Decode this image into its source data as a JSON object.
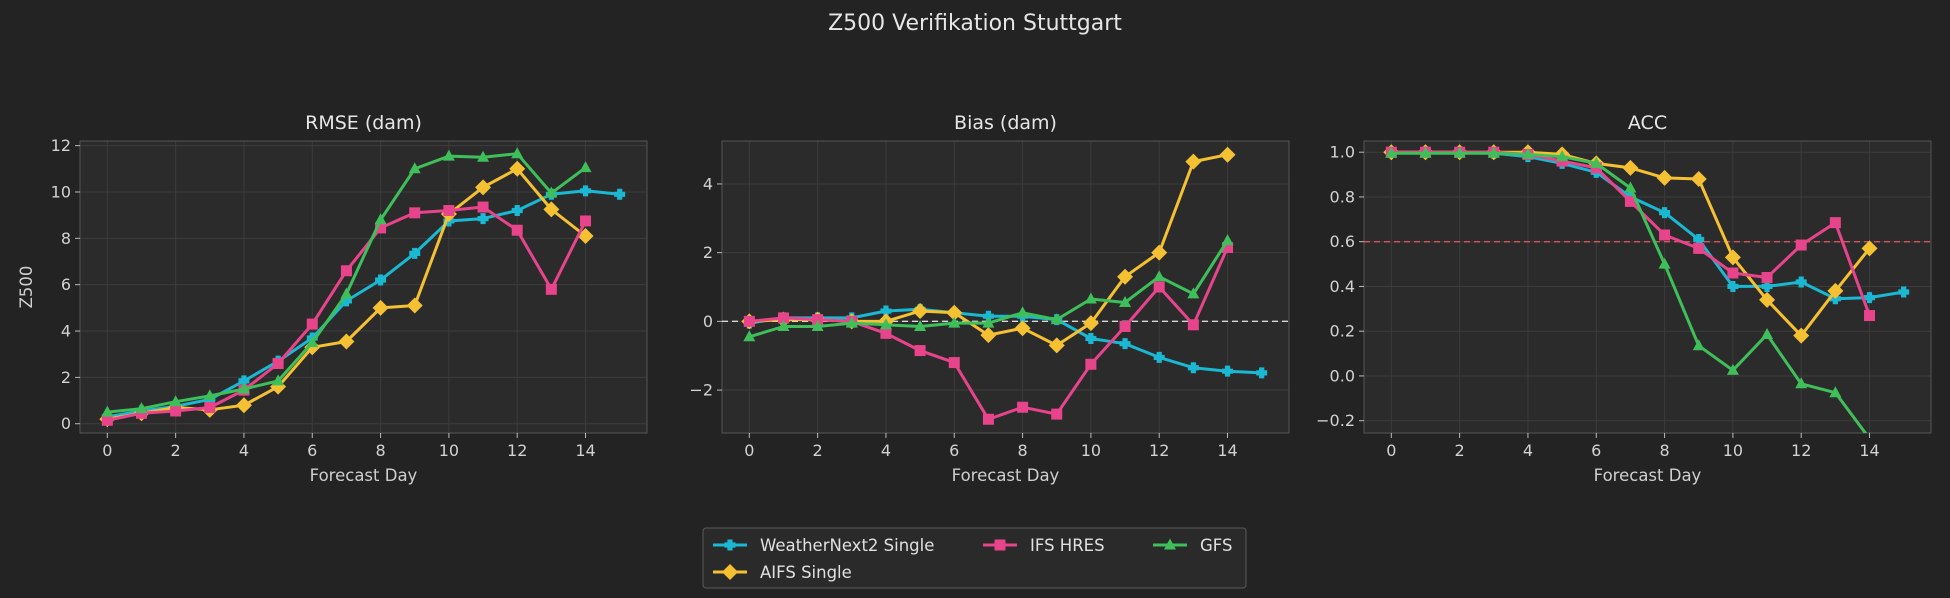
{
  "chart_data": {
    "type": "line",
    "suptitle": "Z500 Verifikation Stuttgart",
    "series_styles": [
      {
        "name": "WeatherNext2 Single",
        "color": "#1ab8d2",
        "marker": "plus-filled"
      },
      {
        "name": "AIFS Single",
        "color": "#f5c132",
        "marker": "diamond"
      },
      {
        "name": "IFS HRES",
        "color": "#e8448c",
        "marker": "square"
      },
      {
        "name": "GFS",
        "color": "#3fbf5a",
        "marker": "triangle"
      }
    ],
    "legend": {
      "placement": "bottom-center",
      "columns": 3,
      "order": [
        "WeatherNext2 Single",
        "IFS HRES",
        "GFS",
        "AIFS Single"
      ]
    },
    "panels": [
      {
        "title": "RMSE (dam)",
        "xlabel": "Forecast Day",
        "ylabel": "Z500",
        "xlim": [
          -0.8,
          15.8
        ],
        "ylim": [
          -0.4,
          12.2
        ],
        "xticks": [
          0,
          2,
          4,
          6,
          8,
          10,
          12,
          14
        ],
        "yticks": [
          0,
          2,
          4,
          6,
          8,
          10,
          12
        ],
        "tick_format": "int",
        "grid": true,
        "series": [
          {
            "name": "WeatherNext2 Single",
            "x": [
              0,
              1,
              2,
              3,
              4,
              5,
              6,
              7,
              8,
              9,
              10,
              11,
              12,
              13,
              14,
              15
            ],
            "values": [
              0.3,
              0.55,
              0.75,
              1.05,
              1.85,
              2.7,
              3.7,
              5.3,
              6.2,
              7.35,
              8.75,
              8.85,
              9.2,
              9.9,
              10.05,
              9.9
            ]
          },
          {
            "name": "AIFS Single",
            "x": [
              0,
              1,
              2,
              3,
              4,
              5,
              6,
              7,
              8,
              9,
              10,
              11,
              12,
              13,
              14
            ],
            "values": [
              0.2,
              0.45,
              0.7,
              0.6,
              0.8,
              1.6,
              3.3,
              3.55,
              5.0,
              5.1,
              9.05,
              10.2,
              11.0,
              9.25,
              8.1
            ]
          },
          {
            "name": "IFS HRES",
            "x": [
              0,
              1,
              2,
              3,
              4,
              5,
              6,
              7,
              8,
              9,
              10,
              11,
              12,
              13,
              14
            ],
            "values": [
              0.15,
              0.45,
              0.55,
              0.7,
              1.45,
              2.6,
              4.3,
              6.6,
              8.45,
              9.1,
              9.2,
              9.35,
              8.35,
              5.8,
              8.75
            ]
          },
          {
            "name": "GFS",
            "x": [
              0,
              1,
              2,
              3,
              4,
              5,
              6,
              7,
              8,
              9,
              10,
              11,
              12,
              13,
              14
            ],
            "values": [
              0.5,
              0.65,
              0.95,
              1.2,
              1.5,
              1.85,
              3.5,
              5.6,
              8.8,
              11.0,
              11.55,
              11.5,
              11.65,
              9.95,
              11.05
            ]
          }
        ]
      },
      {
        "title": "Bias (dam)",
        "xlabel": "Forecast Day",
        "ylabel": "",
        "xlim": [
          -0.8,
          15.8
        ],
        "ylim": [
          -3.25,
          5.25
        ],
        "xticks": [
          0,
          2,
          4,
          6,
          8,
          10,
          12,
          14
        ],
        "yticks": [
          -2,
          0,
          2,
          4
        ],
        "tick_format": "int_minus",
        "grid": true,
        "ref_line": {
          "y": 0,
          "color": "#d8d8d8"
        },
        "series": [
          {
            "name": "WeatherNext2 Single",
            "x": [
              0,
              1,
              2,
              3,
              4,
              5,
              6,
              7,
              8,
              9,
              10,
              11,
              12,
              13,
              14,
              15
            ],
            "values": [
              -0.05,
              0.1,
              0.1,
              0.1,
              0.3,
              0.35,
              0.25,
              0.15,
              0.15,
              0.05,
              -0.5,
              -0.65,
              -1.05,
              -1.35,
              -1.45,
              -1.5
            ]
          },
          {
            "name": "AIFS Single",
            "x": [
              0,
              1,
              2,
              3,
              4,
              5,
              6,
              7,
              8,
              9,
              10,
              11,
              12,
              13,
              14
            ],
            "values": [
              0.0,
              0.05,
              0.05,
              0.0,
              0.0,
              0.3,
              0.25,
              -0.4,
              -0.2,
              -0.7,
              -0.05,
              1.3,
              2.0,
              4.65,
              4.85
            ]
          },
          {
            "name": "IFS HRES",
            "x": [
              0,
              1,
              2,
              3,
              4,
              5,
              6,
              7,
              8,
              9,
              10,
              11,
              12,
              13,
              14
            ],
            "values": [
              0.0,
              0.1,
              0.05,
              0.0,
              -0.35,
              -0.85,
              -1.2,
              -2.85,
              -2.5,
              -2.7,
              -1.25,
              -0.15,
              1.0,
              -0.1,
              2.15
            ]
          },
          {
            "name": "GFS",
            "x": [
              0,
              1,
              2,
              3,
              4,
              5,
              6,
              7,
              8,
              9,
              10,
              11,
              12,
              13,
              14
            ],
            "values": [
              -0.45,
              -0.15,
              -0.15,
              -0.05,
              -0.1,
              -0.15,
              -0.05,
              -0.05,
              0.25,
              0.05,
              0.65,
              0.55,
              1.3,
              0.8,
              2.35
            ]
          }
        ]
      },
      {
        "title": "ACC",
        "xlabel": "Forecast Day",
        "ylabel": "",
        "xlim": [
          -0.8,
          15.8
        ],
        "ylim": [
          -0.255,
          1.05
        ],
        "xticks": [
          0,
          2,
          4,
          6,
          8,
          10,
          12,
          14
        ],
        "yticks": [
          -0.2,
          0.0,
          0.2,
          0.4,
          0.6,
          0.8,
          1.0
        ],
        "tick_format": "one_decimal_minus",
        "grid": true,
        "ref_line": {
          "y": 0.6,
          "color": "#d9545e"
        },
        "series": [
          {
            "name": "WeatherNext2 Single",
            "x": [
              0,
              1,
              2,
              3,
              4,
              5,
              6,
              7,
              8,
              9,
              10,
              11,
              12,
              13,
              14,
              15
            ],
            "values": [
              1.0,
              1.0,
              1.0,
              0.995,
              0.98,
              0.95,
              0.91,
              0.8,
              0.73,
              0.61,
              0.4,
              0.4,
              0.42,
              0.345,
              0.35,
              0.375
            ]
          },
          {
            "name": "AIFS Single",
            "x": [
              0,
              1,
              2,
              3,
              4,
              5,
              6,
              7,
              8,
              9,
              10,
              11,
              12,
              13,
              14
            ],
            "values": [
              1.0,
              1.0,
              1.0,
              1.0,
              1.0,
              0.99,
              0.95,
              0.93,
              0.885,
              0.88,
              0.53,
              0.34,
              0.18,
              0.38,
              0.57
            ]
          },
          {
            "name": "IFS HRES",
            "x": [
              0,
              1,
              2,
              3,
              4,
              5,
              6,
              7,
              8,
              9,
              10,
              11,
              12,
              13,
              14
            ],
            "values": [
              1.0,
              1.0,
              1.0,
              1.0,
              0.99,
              0.96,
              0.93,
              0.78,
              0.63,
              0.57,
              0.46,
              0.44,
              0.585,
              0.685,
              0.27
            ]
          },
          {
            "name": "GFS",
            "x": [
              0,
              1,
              2,
              3,
              4,
              5,
              6,
              7,
              8,
              9,
              10,
              11,
              12,
              13,
              14
            ],
            "values": [
              0.995,
              0.995,
              0.995,
              0.995,
              0.99,
              0.98,
              0.95,
              0.84,
              0.5,
              0.135,
              0.025,
              0.185,
              -0.035,
              -0.075,
              -0.28
            ]
          }
        ]
      }
    ]
  }
}
